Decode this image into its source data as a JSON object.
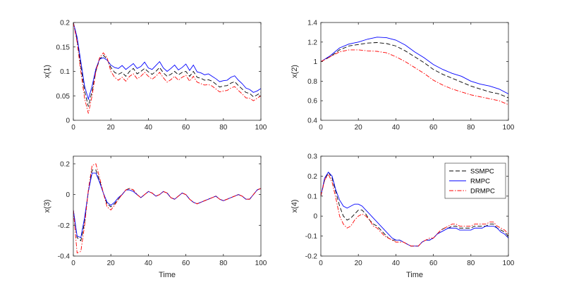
{
  "chart_data": [
    {
      "type": "line",
      "xlabel": "",
      "ylabel": "x(1)",
      "xlim": [
        0,
        100
      ],
      "ylim": [
        0,
        0.2
      ],
      "xticks": [
        "0",
        "20",
        "40",
        "60",
        "80",
        "100"
      ],
      "yticks": [
        "0",
        "0.05",
        "0.1",
        "0.15",
        "0.2"
      ],
      "x": [
        0,
        2,
        4,
        6,
        8,
        10,
        12,
        14,
        16,
        18,
        20,
        22,
        24,
        26,
        28,
        30,
        32,
        34,
        36,
        38,
        40,
        42,
        44,
        46,
        48,
        50,
        52,
        54,
        56,
        58,
        60,
        62,
        64,
        66,
        68,
        70,
        72,
        74,
        76,
        78,
        80,
        82,
        84,
        86,
        88,
        90,
        92,
        94,
        96,
        98,
        100
      ],
      "series": [
        {
          "name": "SSMPC",
          "color": "#000000",
          "dash": "dashed",
          "values": [
            0.2,
            0.165,
            0.11,
            0.06,
            0.028,
            0.06,
            0.1,
            0.125,
            0.133,
            0.125,
            0.108,
            0.098,
            0.094,
            0.098,
            0.09,
            0.1,
            0.106,
            0.095,
            0.1,
            0.106,
            0.099,
            0.094,
            0.1,
            0.108,
            0.097,
            0.09,
            0.094,
            0.1,
            0.093,
            0.098,
            0.1,
            0.09,
            0.1,
            0.088,
            0.086,
            0.082,
            0.083,
            0.08,
            0.074,
            0.068,
            0.07,
            0.071,
            0.076,
            0.079,
            0.071,
            0.064,
            0.057,
            0.055,
            0.048,
            0.052,
            0.057
          ]
        },
        {
          "name": "RMPC",
          "color": "#0000ff",
          "dash": "solid",
          "values": [
            0.2,
            0.17,
            0.12,
            0.07,
            0.043,
            0.07,
            0.105,
            0.125,
            0.128,
            0.123,
            0.113,
            0.108,
            0.106,
            0.112,
            0.104,
            0.11,
            0.116,
            0.106,
            0.11,
            0.119,
            0.107,
            0.104,
            0.112,
            0.12,
            0.107,
            0.1,
            0.106,
            0.113,
            0.103,
            0.108,
            0.115,
            0.102,
            0.113,
            0.099,
            0.097,
            0.093,
            0.095,
            0.09,
            0.085,
            0.079,
            0.081,
            0.082,
            0.088,
            0.091,
            0.082,
            0.075,
            0.066,
            0.063,
            0.057,
            0.06,
            0.065
          ]
        },
        {
          "name": "DRMPC",
          "color": "#ff0000",
          "dash": "dashdot",
          "values": [
            0.2,
            0.16,
            0.1,
            0.045,
            0.014,
            0.05,
            0.1,
            0.128,
            0.138,
            0.128,
            0.1,
            0.088,
            0.082,
            0.088,
            0.08,
            0.09,
            0.095,
            0.085,
            0.09,
            0.098,
            0.09,
            0.084,
            0.09,
            0.098,
            0.087,
            0.078,
            0.083,
            0.09,
            0.082,
            0.088,
            0.092,
            0.08,
            0.09,
            0.078,
            0.075,
            0.072,
            0.073,
            0.07,
            0.064,
            0.058,
            0.06,
            0.061,
            0.066,
            0.069,
            0.061,
            0.054,
            0.046,
            0.045,
            0.04,
            0.045,
            0.05
          ]
        }
      ]
    },
    {
      "type": "line",
      "xlabel": "",
      "ylabel": "x(2)",
      "xlim": [
        0,
        100
      ],
      "ylim": [
        0.4,
        1.4
      ],
      "xticks": [
        "0",
        "20",
        "40",
        "60",
        "80",
        "100"
      ],
      "yticks": [
        "0.4",
        "0.6",
        "0.8",
        "1",
        "1.2",
        "1.4"
      ],
      "x": [
        0,
        5,
        10,
        15,
        20,
        25,
        30,
        35,
        40,
        45,
        50,
        55,
        60,
        65,
        70,
        75,
        80,
        85,
        90,
        95,
        100
      ],
      "series": [
        {
          "name": "SSMPC",
          "color": "#000000",
          "dash": "dashed",
          "values": [
            1.0,
            1.05,
            1.12,
            1.16,
            1.175,
            1.19,
            1.195,
            1.185,
            1.16,
            1.11,
            1.05,
            0.99,
            0.92,
            0.87,
            0.83,
            0.79,
            0.75,
            0.72,
            0.69,
            0.67,
            0.63
          ]
        },
        {
          "name": "RMPC",
          "color": "#0000ff",
          "dash": "solid",
          "values": [
            1.0,
            1.06,
            1.14,
            1.18,
            1.2,
            1.23,
            1.25,
            1.245,
            1.22,
            1.17,
            1.1,
            1.04,
            0.97,
            0.92,
            0.88,
            0.85,
            0.8,
            0.77,
            0.75,
            0.72,
            0.67
          ]
        },
        {
          "name": "DRMPC",
          "color": "#ff0000",
          "dash": "dashdot",
          "values": [
            1.0,
            1.05,
            1.1,
            1.12,
            1.12,
            1.11,
            1.105,
            1.09,
            1.05,
            1.0,
            0.94,
            0.88,
            0.81,
            0.76,
            0.72,
            0.69,
            0.66,
            0.64,
            0.62,
            0.6,
            0.56
          ]
        }
      ]
    },
    {
      "type": "line",
      "xlabel": "Time",
      "ylabel": "x(3)",
      "xlim": [
        0,
        100
      ],
      "ylim": [
        -0.4,
        0.25
      ],
      "xticks": [
        "0",
        "20",
        "40",
        "60",
        "80",
        "100"
      ],
      "yticks": [
        "-0.4",
        "-0.2",
        "0",
        "0.2"
      ],
      "x": [
        0,
        2,
        4,
        6,
        8,
        10,
        12,
        14,
        16,
        18,
        20,
        22,
        24,
        26,
        28,
        30,
        32,
        34,
        36,
        38,
        40,
        42,
        44,
        46,
        48,
        50,
        52,
        54,
        56,
        58,
        60,
        62,
        64,
        66,
        68,
        70,
        72,
        74,
        76,
        78,
        80,
        82,
        84,
        86,
        88,
        90,
        92,
        94,
        96,
        98,
        100
      ],
      "series": [
        {
          "name": "SSMPC",
          "color": "#000000",
          "dash": "dashed",
          "values": [
            -0.1,
            -0.28,
            -0.3,
            -0.18,
            0.02,
            0.16,
            0.16,
            0.09,
            0.01,
            -0.06,
            -0.08,
            -0.06,
            -0.03,
            0.0,
            0.03,
            0.04,
            0.03,
            0.0,
            -0.02,
            0.0,
            0.02,
            0.01,
            -0.01,
            0.0,
            0.02,
            0.01,
            -0.02,
            -0.03,
            -0.01,
            0.01,
            0.0,
            -0.03,
            -0.05,
            -0.06,
            -0.05,
            -0.04,
            -0.03,
            -0.02,
            -0.01,
            -0.03,
            -0.04,
            -0.03,
            -0.02,
            -0.01,
            0.0,
            -0.01,
            -0.03,
            -0.03,
            0.0,
            0.03,
            0.04
          ]
        },
        {
          "name": "RMPC",
          "color": "#0000ff",
          "dash": "solid",
          "values": [
            -0.1,
            -0.27,
            -0.28,
            -0.15,
            0.02,
            0.14,
            0.14,
            0.08,
            0.01,
            -0.05,
            -0.07,
            -0.05,
            -0.02,
            0.0,
            0.03,
            0.03,
            0.02,
            0.0,
            -0.02,
            0.0,
            0.02,
            0.01,
            -0.01,
            0.0,
            0.02,
            0.01,
            -0.02,
            -0.03,
            -0.01,
            0.01,
            0.0,
            -0.03,
            -0.05,
            -0.06,
            -0.05,
            -0.04,
            -0.03,
            -0.02,
            -0.01,
            -0.03,
            -0.04,
            -0.03,
            -0.02,
            -0.01,
            0.0,
            -0.01,
            -0.03,
            -0.03,
            0.0,
            0.03,
            0.04
          ]
        },
        {
          "name": "DRMPC",
          "color": "#ff0000",
          "dash": "dashdot",
          "values": [
            -0.1,
            -0.38,
            -0.37,
            -0.2,
            0.03,
            0.19,
            0.2,
            0.11,
            0.01,
            -0.08,
            -0.1,
            -0.07,
            -0.03,
            0.0,
            0.03,
            0.04,
            0.03,
            0.0,
            -0.02,
            0.0,
            0.02,
            0.01,
            -0.01,
            0.0,
            0.02,
            0.01,
            -0.02,
            -0.03,
            -0.01,
            0.01,
            0.0,
            -0.03,
            -0.05,
            -0.06,
            -0.05,
            -0.04,
            -0.03,
            -0.02,
            -0.01,
            -0.03,
            -0.04,
            -0.03,
            -0.02,
            -0.01,
            0.0,
            -0.01,
            -0.03,
            -0.03,
            0.0,
            0.03,
            0.04
          ]
        }
      ]
    },
    {
      "type": "line",
      "xlabel": "Time",
      "ylabel": "x(4)",
      "xlim": [
        0,
        100
      ],
      "ylim": [
        -0.2,
        0.3
      ],
      "xticks": [
        "0",
        "20",
        "40",
        "60",
        "80",
        "100"
      ],
      "yticks": [
        "-0.2",
        "-0.1",
        "0",
        "0.1",
        "0.2",
        "0.3"
      ],
      "legend": {
        "position": "top-right",
        "entries": [
          "SSMPC",
          "RMPC",
          "DRMPC"
        ]
      },
      "x": [
        0,
        2,
        4,
        6,
        8,
        10,
        12,
        14,
        16,
        18,
        20,
        22,
        24,
        26,
        28,
        30,
        32,
        34,
        36,
        38,
        40,
        42,
        44,
        46,
        48,
        50,
        52,
        54,
        56,
        58,
        60,
        62,
        64,
        66,
        68,
        70,
        72,
        74,
        76,
        78,
        80,
        82,
        84,
        86,
        88,
        90,
        92,
        94,
        96,
        98,
        100
      ],
      "series": [
        {
          "name": "SSMPC",
          "color": "#000000",
          "dash": "dashed",
          "values": [
            0.1,
            0.18,
            0.22,
            0.19,
            0.12,
            0.05,
            0.0,
            -0.02,
            -0.01,
            0.01,
            0.03,
            0.03,
            0.01,
            -0.02,
            -0.04,
            -0.05,
            -0.07,
            -0.09,
            -0.11,
            -0.12,
            -0.12,
            -0.12,
            -0.13,
            -0.14,
            -0.15,
            -0.15,
            -0.15,
            -0.13,
            -0.12,
            -0.12,
            -0.11,
            -0.09,
            -0.07,
            -0.06,
            -0.06,
            -0.05,
            -0.05,
            -0.06,
            -0.06,
            -0.06,
            -0.06,
            -0.05,
            -0.05,
            -0.05,
            -0.05,
            -0.04,
            -0.04,
            -0.06,
            -0.07,
            -0.08,
            -0.1
          ]
        },
        {
          "name": "RMPC",
          "color": "#0000ff",
          "dash": "solid",
          "values": [
            0.1,
            0.19,
            0.22,
            0.2,
            0.13,
            0.08,
            0.05,
            0.04,
            0.05,
            0.06,
            0.06,
            0.05,
            0.03,
            0.01,
            -0.01,
            -0.03,
            -0.05,
            -0.07,
            -0.09,
            -0.11,
            -0.12,
            -0.12,
            -0.13,
            -0.14,
            -0.15,
            -0.15,
            -0.15,
            -0.13,
            -0.12,
            -0.12,
            -0.11,
            -0.09,
            -0.08,
            -0.07,
            -0.06,
            -0.06,
            -0.06,
            -0.07,
            -0.07,
            -0.07,
            -0.07,
            -0.06,
            -0.06,
            -0.06,
            -0.05,
            -0.05,
            -0.05,
            -0.06,
            -0.08,
            -0.09,
            -0.11
          ]
        },
        {
          "name": "DRMPC",
          "color": "#ff0000",
          "dash": "dashdot",
          "values": [
            0.1,
            0.18,
            0.21,
            0.17,
            0.09,
            0.0,
            -0.04,
            -0.06,
            -0.05,
            -0.02,
            0.0,
            0.01,
            0.0,
            -0.02,
            -0.05,
            -0.06,
            -0.08,
            -0.1,
            -0.11,
            -0.12,
            -0.13,
            -0.13,
            -0.13,
            -0.14,
            -0.15,
            -0.15,
            -0.15,
            -0.13,
            -0.12,
            -0.11,
            -0.11,
            -0.09,
            -0.07,
            -0.06,
            -0.05,
            -0.04,
            -0.04,
            -0.05,
            -0.05,
            -0.05,
            -0.05,
            -0.04,
            -0.04,
            -0.04,
            -0.04,
            -0.03,
            -0.03,
            -0.05,
            -0.06,
            -0.07,
            -0.09
          ]
        }
      ]
    }
  ]
}
